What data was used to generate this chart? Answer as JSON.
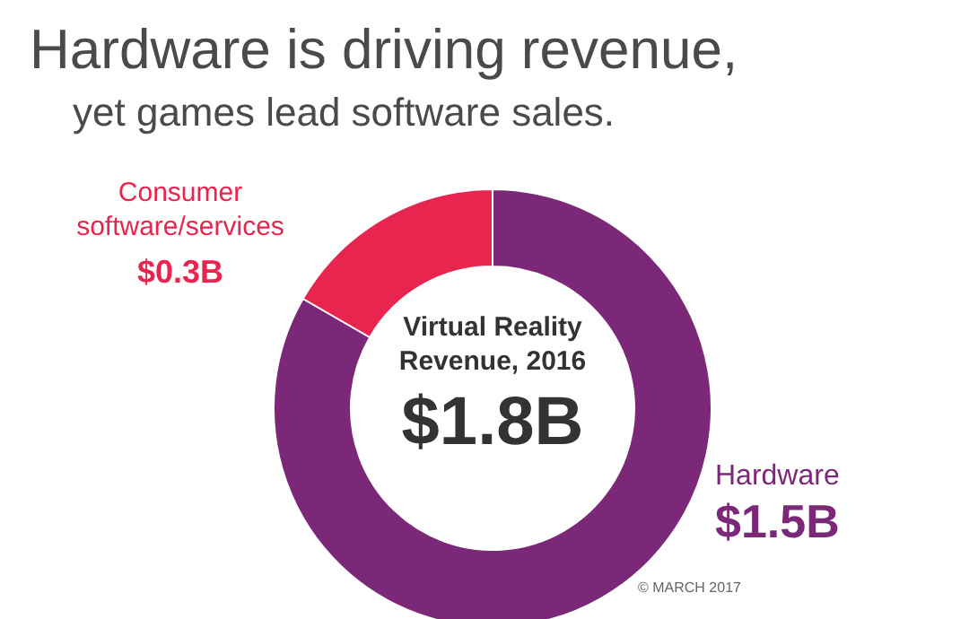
{
  "chart_data": {
    "type": "donut",
    "title": "Hardware is driving revenue,",
    "subtitle": "yet games lead software sales.",
    "categories": [
      "Hardware",
      "Consumer software/services"
    ],
    "values": [
      1.5,
      0.3
    ],
    "colors": [
      "#7b2878",
      "#e8254f"
    ],
    "value_labels": [
      "$1.5B",
      "$0.3B"
    ],
    "annotations": [
      "Virtual Reality Revenue, 2016",
      "$1.8B",
      "© MARCH 2017"
    ]
  }
}
